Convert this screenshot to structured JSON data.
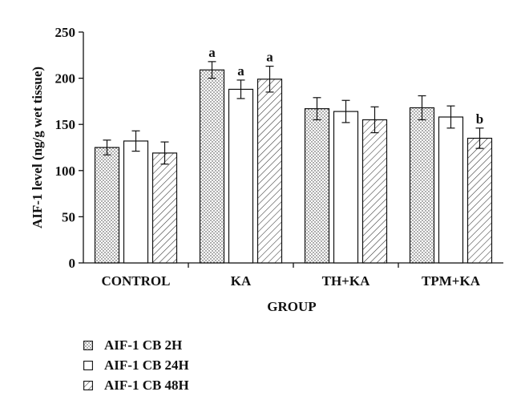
{
  "chart_data": {
    "type": "bar",
    "xlabel": "GROUP",
    "ylabel": "AIF-1 level (ng/g wet tissue)",
    "ylim": [
      0,
      250
    ],
    "yticks": [
      0,
      50,
      100,
      150,
      200,
      250
    ],
    "categories": [
      "CONTROL",
      "KA",
      "TH+KA",
      "TPM+KA"
    ],
    "series": [
      {
        "name": "AIF-1 CB 2H",
        "pattern": "dots",
        "values": [
          125,
          209,
          167,
          168
        ],
        "errors": [
          8,
          9,
          12,
          13
        ]
      },
      {
        "name": "AIF-1 CB 24H",
        "pattern": "blank",
        "values": [
          132,
          188,
          164,
          158
        ],
        "errors": [
          11,
          10,
          12,
          12
        ]
      },
      {
        "name": "AIF-1 CB 48H",
        "pattern": "hatched",
        "values": [
          119,
          199,
          155,
          135
        ],
        "errors": [
          12,
          14,
          14,
          11
        ]
      }
    ],
    "annotations": [
      {
        "category": "KA",
        "series": "AIF-1 CB 2H",
        "text": "a"
      },
      {
        "category": "KA",
        "series": "AIF-1 CB 24H",
        "text": "a"
      },
      {
        "category": "KA",
        "series": "AIF-1 CB 48H",
        "text": "a"
      },
      {
        "category": "TPM+KA",
        "series": "AIF-1 CB 48H",
        "text": "b"
      }
    ],
    "legend_position": "bottom-left",
    "grid": false,
    "colors": {
      "stroke": "#111111",
      "fill": "#ffffff",
      "pattern": "#333333"
    }
  }
}
